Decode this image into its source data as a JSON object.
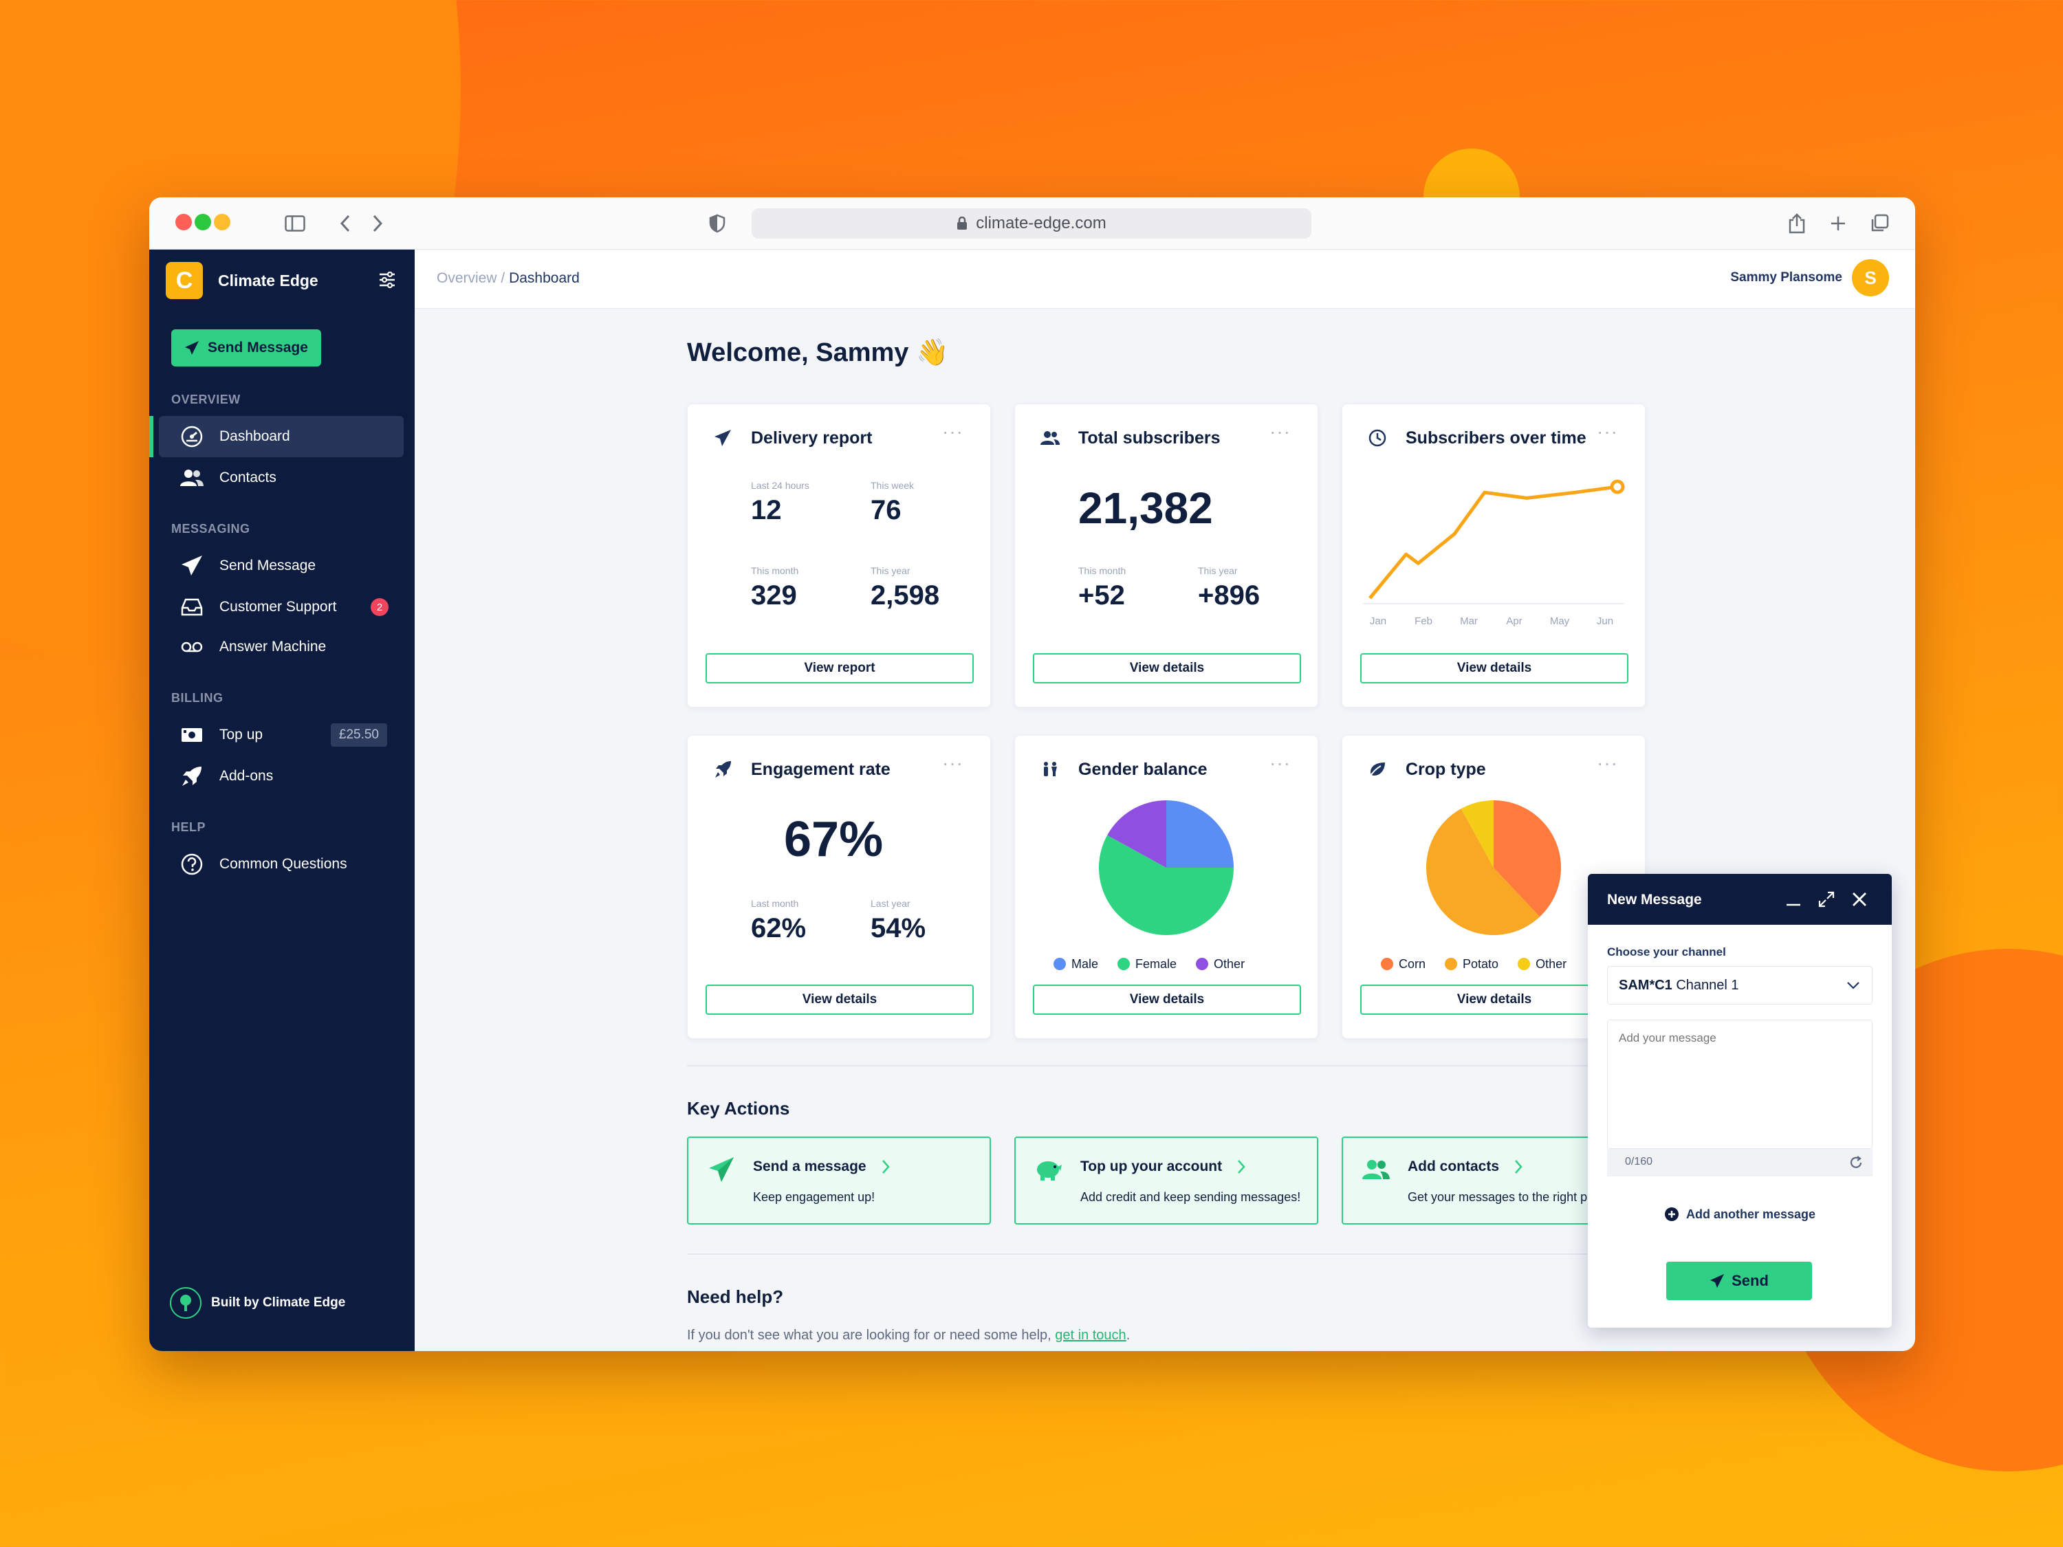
{
  "browser": {
    "url": "climate-edge.com"
  },
  "sidebar": {
    "brand_letter": "C",
    "brand_name": "Climate Edge",
    "send_button": "Send Message",
    "sections": {
      "overview": "OVERVIEW",
      "messaging": "MESSAGING",
      "billing": "BILLING",
      "help": "HELP"
    },
    "items": {
      "dashboard": "Dashboard",
      "contacts": "Contacts",
      "send_message": "Send Message",
      "customer_support": "Customer Support",
      "customer_support_count": "2",
      "answer_machine": "Answer Machine",
      "top_up": "Top up",
      "top_up_balance": "£25.50",
      "add_ons": "Add-ons",
      "common_questions": "Common Questions"
    },
    "footer": "Built by Climate Edge"
  },
  "topbar": {
    "crumb_parent": "Overview",
    "crumb_sep": "/",
    "crumb_current": "Dashboard",
    "user_name": "Sammy Plansome",
    "user_initial": "S"
  },
  "main": {
    "welcome": "Welcome, Sammy 👋",
    "delivery": {
      "title": "Delivery report",
      "last24_label": "Last 24 hours",
      "last24_value": "12",
      "week_label": "This week",
      "week_value": "76",
      "month_label": "This month",
      "month_value": "329",
      "year_label": "This year",
      "year_value": "2,598",
      "button": "View report"
    },
    "subscribers": {
      "title": "Total subscribers",
      "total": "21,382",
      "month_label": "This month",
      "month_value": "+52",
      "year_label": "This year",
      "year_value": "+896",
      "button": "View details"
    },
    "over_time": {
      "title": "Subscribers over time",
      "button": "View details"
    },
    "engagement": {
      "title": "Engagement rate",
      "rate": "67%",
      "last_month_label": "Last month",
      "last_month_value": "62%",
      "last_year_label": "Last year",
      "last_year_value": "54%",
      "button": "View details"
    },
    "gender": {
      "title": "Gender balance",
      "button": "View details"
    },
    "crop": {
      "title": "Crop type",
      "button": "View details"
    },
    "key_actions": {
      "title": "Key Actions",
      "send": {
        "title": "Send a message",
        "sub": "Keep engagement up!"
      },
      "topup": {
        "title": "Top up your account",
        "sub": "Add credit and keep sending messages!"
      },
      "contacts": {
        "title": "Add contacts",
        "sub": "Get your messages to the right p"
      }
    },
    "help": {
      "title": "Need help?",
      "text": "If you don't see what you are looking for or need some help,",
      "link": "get in touch",
      "end": "."
    }
  },
  "composer": {
    "title": "New Message",
    "channel_label": "Choose your channel",
    "channel_code": "SAM*C1",
    "channel_name": "Channel 1",
    "placeholder": "Add your message",
    "counter": "0/160",
    "add_another": "Add another message",
    "send": "Send"
  },
  "chart_data": [
    {
      "type": "line",
      "title": "Subscribers over time",
      "categories": [
        "Jan",
        "Feb",
        "Mar",
        "Apr",
        "May",
        "Jun"
      ],
      "series": [
        {
          "name": "Subscribers",
          "values": [
            0,
            39,
            31,
            57,
            94,
            89,
            94,
            99
          ]
        }
      ],
      "x": [
        0,
        0.6,
        0.8,
        1.4,
        1.9,
        2.6,
        3.4,
        4.1
      ],
      "ylim": [
        0,
        110
      ],
      "grid": false,
      "color": "#f8a516"
    },
    {
      "type": "pie",
      "title": "Gender balance",
      "labels": [
        "Male",
        "Female",
        "Other"
      ],
      "values": [
        25,
        58,
        17
      ],
      "colors": [
        "#5b8ef5",
        "#2ed482",
        "#8f4fe0"
      ]
    },
    {
      "type": "pie",
      "title": "Crop type",
      "labels": [
        "Corn",
        "Potato",
        "Other"
      ],
      "values": [
        38,
        54,
        8
      ],
      "colors": [
        "#ff7a3d",
        "#f9a825",
        "#f5cc16"
      ]
    }
  ]
}
